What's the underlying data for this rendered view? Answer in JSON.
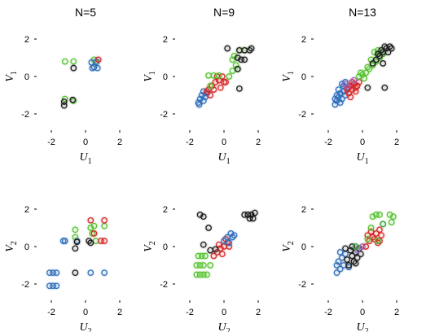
{
  "chart_data": [
    {
      "type": "scatter",
      "title": "N=5",
      "xlabel": "U",
      "xlabel_sub": "1",
      "ylabel": "V",
      "ylabel_sub": "1",
      "xlim": [
        -3,
        3
      ],
      "ylim": [
        -3,
        3
      ],
      "xticks": [
        -2,
        0,
        2
      ],
      "yticks": [
        -2,
        0,
        2
      ],
      "grid": false,
      "series": [
        {
          "color": "#56c230",
          "x": [
            -1.2,
            -0.7,
            -1.2,
            -0.7,
            0.5,
            0.6
          ],
          "y": [
            0.8,
            0.8,
            -1.2,
            -1.3,
            0.9,
            0.75
          ]
        },
        {
          "color": "#1a1a1a",
          "x": [
            -1.25,
            -0.75,
            -1.25,
            -0.7
          ],
          "y": [
            -1.35,
            -1.25,
            -1.55,
            0.45
          ]
        },
        {
          "color": "#2f6fba",
          "x": [
            0.35,
            0.5,
            0.7,
            0.4,
            0.65
          ],
          "y": [
            0.75,
            0.5,
            0.45,
            0.45,
            0.8
          ]
        },
        {
          "color": "#d62728",
          "x": [
            0.75
          ],
          "y": [
            0.9
          ]
        }
      ]
    },
    {
      "type": "scatter",
      "title": "N=9",
      "xlabel": "U",
      "xlabel_sub": "1",
      "ylabel": "V",
      "ylabel_sub": "1",
      "xlim": [
        -3,
        3
      ],
      "ylim": [
        -3,
        3
      ],
      "xticks": [
        -2,
        0,
        2
      ],
      "yticks": [
        -2,
        0,
        2
      ],
      "grid": false,
      "series": [
        {
          "color": "#2f6fba",
          "x": [
            -1.5,
            -1.4,
            -1.3,
            -1.2,
            -1.1,
            -1.0,
            -1.45,
            -1.2
          ],
          "y": [
            -1.4,
            -1.2,
            -1.0,
            -1.3,
            -1.1,
            -0.9,
            -1.5,
            -0.8
          ]
        },
        {
          "color": "#d62728",
          "x": [
            -0.9,
            -0.7,
            -0.5,
            -0.3,
            -0.1,
            0.1,
            -0.6,
            -0.2,
            0.0,
            -0.8,
            -0.4,
            -1.0
          ],
          "y": [
            -0.7,
            -0.5,
            -0.3,
            -0.2,
            0.0,
            -0.3,
            -0.7,
            -0.6,
            -0.3,
            -1.0,
            0.0,
            -0.8
          ]
        },
        {
          "color": "#56c230",
          "x": [
            -0.9,
            -0.6,
            -0.3,
            -0.8,
            0.3,
            0.5,
            0.7,
            0.9,
            1.2,
            0.5,
            0.8,
            0.6
          ],
          "y": [
            0.05,
            0.05,
            0.05,
            -0.5,
            0.0,
            0.3,
            0.6,
            1.4,
            1.4,
            0.9,
            0.4,
            1.1
          ]
        },
        {
          "color": "#1a1a1a",
          "x": [
            0.9,
            1.2,
            1.5,
            1.6,
            0.2,
            0.8,
            1.0,
            0.8,
            1.2,
            0.9
          ],
          "y": [
            1.4,
            1.4,
            1.4,
            1.5,
            1.5,
            1.0,
            0.9,
            0.4,
            0.9,
            -0.65
          ]
        }
      ]
    },
    {
      "type": "scatter",
      "title": "N=13",
      "xlabel": "U",
      "xlabel_sub": "1",
      "ylabel": "V",
      "ylabel_sub": "1",
      "xlim": [
        -3,
        3
      ],
      "ylim": [
        -3,
        3
      ],
      "xticks": [
        -2,
        0,
        2
      ],
      "yticks": [
        -2,
        0,
        2
      ],
      "grid": false,
      "series": [
        {
          "color": "#2f6fba",
          "x": [
            -1.6,
            -1.5,
            -1.4,
            -1.3,
            -1.2,
            -1.1,
            -1.0,
            -0.9,
            -1.5,
            -1.3,
            -1.1,
            -1.4,
            -1.2,
            -1.0,
            -1.6
          ],
          "y": [
            -1.5,
            -1.3,
            -1.1,
            -0.9,
            -1.2,
            -0.8,
            -1.0,
            -0.6,
            -1.0,
            -1.4,
            -0.5,
            -0.7,
            -0.4,
            -0.3,
            -1.2
          ]
        },
        {
          "color": "#d62728",
          "x": [
            -0.9,
            -0.8,
            -0.7,
            -0.6,
            -0.5,
            -0.4,
            -0.3,
            -0.2,
            -0.8,
            -0.6,
            -0.4,
            -0.7
          ],
          "y": [
            -0.7,
            -0.6,
            -0.5,
            -0.7,
            -0.4,
            -0.6,
            -0.5,
            -0.3,
            -0.9,
            -0.3,
            -0.8,
            -1.1
          ]
        },
        {
          "color": "#9467bd",
          "x": [
            -1.0,
            -0.5,
            -0.9
          ],
          "y": [
            -0.4,
            -0.2,
            -0.55
          ]
        },
        {
          "color": "#56c230",
          "x": [
            -0.2,
            0.0,
            0.2,
            0.4,
            0.6,
            0.8,
            1.0,
            1.2,
            0.7,
            0.3,
            0.5,
            0.9,
            -0.1,
            0.1
          ],
          "y": [
            0.0,
            0.1,
            0.2,
            0.4,
            0.6,
            0.8,
            1.0,
            1.2,
            1.3,
            0.5,
            0.9,
            1.4,
            0.2,
            -0.1
          ]
        },
        {
          "color": "#1a1a1a",
          "x": [
            0.6,
            0.8,
            1.0,
            1.2,
            1.4,
            1.6,
            1.3,
            1.1,
            0.9,
            1.5,
            1.7,
            1.2,
            0.3,
            1.3
          ],
          "y": [
            0.7,
            0.9,
            1.1,
            1.3,
            1.5,
            1.6,
            1.6,
            1.4,
            1.2,
            1.3,
            1.5,
            0.7,
            -0.6,
            -0.6
          ]
        }
      ]
    },
    {
      "type": "scatter",
      "title": "",
      "xlabel": "U",
      "xlabel_sub": "2",
      "ylabel": "V",
      "ylabel_sub": "2",
      "xlim": [
        -3,
        3
      ],
      "ylim": [
        -3,
        3
      ],
      "xticks": [
        -2,
        0,
        2
      ],
      "yticks": [
        -2,
        0,
        2
      ],
      "grid": false,
      "series": [
        {
          "color": "#2f6fba",
          "x": [
            -2.1,
            -1.9,
            -1.7,
            -2.1,
            -1.9,
            -1.7,
            -1.3,
            -0.5,
            0.3,
            1.1,
            -1.2
          ],
          "y": [
            -2.1,
            -2.1,
            -2.1,
            -1.4,
            -1.4,
            -1.4,
            0.3,
            0.3,
            -1.4,
            -1.4,
            0.3
          ]
        },
        {
          "color": "#56c230",
          "x": [
            -0.6,
            0.3,
            0.5,
            0.4,
            0.6,
            1.1,
            -0.6
          ],
          "y": [
            0.9,
            1.0,
            1.1,
            0.7,
            0.3,
            1.1,
            0.5
          ]
        },
        {
          "color": "#d62728",
          "x": [
            0.3,
            0.5,
            1.1,
            1.1,
            0.9
          ],
          "y": [
            1.4,
            0.7,
            1.4,
            0.3,
            0.3
          ]
        },
        {
          "color": "#1a1a1a",
          "x": [
            -0.6,
            0.2,
            0.3,
            -0.6,
            -0.5
          ],
          "y": [
            -0.1,
            0.3,
            0.2,
            -1.4,
            0.25
          ]
        }
      ]
    },
    {
      "type": "scatter",
      "title": "",
      "xlabel": "U",
      "xlabel_sub": "2",
      "ylabel": "V",
      "ylabel_sub": "2",
      "xlim": [
        -3,
        3
      ],
      "ylim": [
        -3,
        3
      ],
      "xticks": [
        -2,
        0,
        2
      ],
      "yticks": [
        -2,
        0,
        2
      ],
      "grid": false,
      "series": [
        {
          "color": "#56c230",
          "x": [
            -1.6,
            -1.4,
            -1.2,
            -1.0,
            -1.6,
            -1.4,
            -1.2,
            -0.8,
            -1.5,
            -1.3,
            -1.1
          ],
          "y": [
            -1.5,
            -1.5,
            -1.5,
            -1.5,
            -1.0,
            -1.0,
            -1.0,
            -1.0,
            -0.5,
            -0.5,
            -0.5
          ]
        },
        {
          "color": "#d62728",
          "x": [
            -0.6,
            -0.4,
            -0.2,
            0.0,
            0.2,
            0.1,
            -0.1,
            -0.3,
            0.3
          ],
          "y": [
            -0.5,
            -0.3,
            -0.1,
            0.0,
            0.2,
            0.4,
            -0.4,
            0.1,
            0.0
          ]
        },
        {
          "color": "#2f6fba",
          "x": [
            0.0,
            0.2,
            0.4,
            0.5,
            0.3,
            0.6
          ],
          "y": [
            0.3,
            0.5,
            0.7,
            0.5,
            0.2,
            0.6
          ]
        },
        {
          "color": "#1a1a1a",
          "x": [
            -1.4,
            -1.2,
            -0.9,
            -0.8,
            1.2,
            1.4,
            1.6,
            1.8,
            1.5,
            1.7,
            -1.2,
            -0.5
          ],
          "y": [
            1.7,
            1.6,
            1.0,
            -0.2,
            1.7,
            1.7,
            1.7,
            1.8,
            1.5,
            1.5,
            0.1,
            -0.15
          ]
        }
      ]
    },
    {
      "type": "scatter",
      "title": "",
      "xlabel": "U",
      "xlabel_sub": "2",
      "ylabel": "V",
      "ylabel_sub": "2",
      "xlim": [
        -3,
        3
      ],
      "ylim": [
        -3,
        3
      ],
      "xticks": [
        -2,
        0,
        2
      ],
      "yticks": [
        -2,
        0,
        2
      ],
      "grid": false,
      "series": [
        {
          "color": "#2f6fba",
          "x": [
            -1.5,
            -1.3,
            -1.1,
            -1.4,
            -1.2,
            -1.0,
            -0.8,
            -1.5,
            -1.3
          ],
          "y": [
            -1.4,
            -1.2,
            -1.0,
            -0.8,
            -0.6,
            -0.4,
            -1.1,
            -1.0,
            -0.3
          ]
        },
        {
          "color": "#1a1a1a",
          "x": [
            -0.9,
            -0.6,
            -0.4,
            -0.2,
            -0.5,
            -0.3,
            -0.7,
            -0.1,
            -0.8,
            -0.4,
            -1.0,
            -0.6
          ],
          "y": [
            -0.7,
            -0.5,
            -0.3,
            -0.1,
            -0.8,
            -0.6,
            -0.2,
            -0.4,
            -1.0,
            -0.9,
            -0.1,
            0.0
          ]
        },
        {
          "color": "#9467bd",
          "x": [
            -0.3,
            0.0
          ],
          "y": [
            -0.2,
            0.0
          ]
        },
        {
          "color": "#d62728",
          "x": [
            0.2,
            0.4,
            0.6,
            0.8,
            1.0,
            0.5,
            0.7,
            0.9,
            1.1,
            0.3,
            1.0
          ],
          "y": [
            0.0,
            0.3,
            0.5,
            0.7,
            0.9,
            0.8,
            0.4,
            0.2,
            0.6,
            0.6,
            0.3
          ]
        },
        {
          "color": "#56c230",
          "x": [
            0.6,
            0.8,
            1.0,
            1.6,
            1.8,
            1.7,
            0.3,
            0.5,
            0.9
          ],
          "y": [
            1.6,
            1.7,
            1.7,
            1.7,
            1.6,
            1.3,
            0.4,
            1.0,
            0.3
          ]
        },
        {
          "color": "#2ca02c",
          "x": [
            -0.4,
            1.2
          ],
          "y": [
            0.0,
            1.2
          ]
        }
      ]
    }
  ]
}
